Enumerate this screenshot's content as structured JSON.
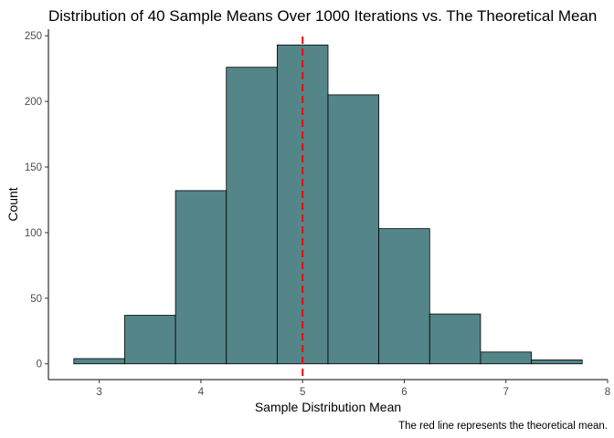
{
  "chart_data": {
    "type": "bar",
    "title": "Distribution of 40 Sample Means Over 1000 Iterations vs. The Theoretical Mean",
    "xlabel": "Sample Distribution Mean",
    "ylabel": "Count",
    "caption": "The red line represents the theoretical mean.",
    "bins": [
      {
        "x0": 2.75,
        "x1": 3.25,
        "count": 4
      },
      {
        "x0": 3.25,
        "x1": 3.75,
        "count": 37
      },
      {
        "x0": 3.75,
        "x1": 4.25,
        "count": 132
      },
      {
        "x0": 4.25,
        "x1": 4.75,
        "count": 226
      },
      {
        "x0": 4.75,
        "x1": 5.25,
        "count": 243
      },
      {
        "x0": 5.25,
        "x1": 5.75,
        "count": 205
      },
      {
        "x0": 5.75,
        "x1": 6.25,
        "count": 103
      },
      {
        "x0": 6.25,
        "x1": 6.75,
        "count": 38
      },
      {
        "x0": 6.75,
        "x1": 7.25,
        "count": 9
      },
      {
        "x0": 7.25,
        "x1": 7.75,
        "count": 3
      }
    ],
    "reference_line": {
      "x": 5,
      "color": "#ff0000",
      "style": "dashed"
    },
    "x_ticks": [
      3,
      4,
      5,
      6,
      7,
      8
    ],
    "y_ticks": [
      0,
      50,
      100,
      150,
      200,
      250
    ],
    "xlim": [
      2.5,
      8
    ],
    "ylim": [
      -12,
      255
    ],
    "bar_color": "#538589",
    "grid": false,
    "legend": "none"
  }
}
